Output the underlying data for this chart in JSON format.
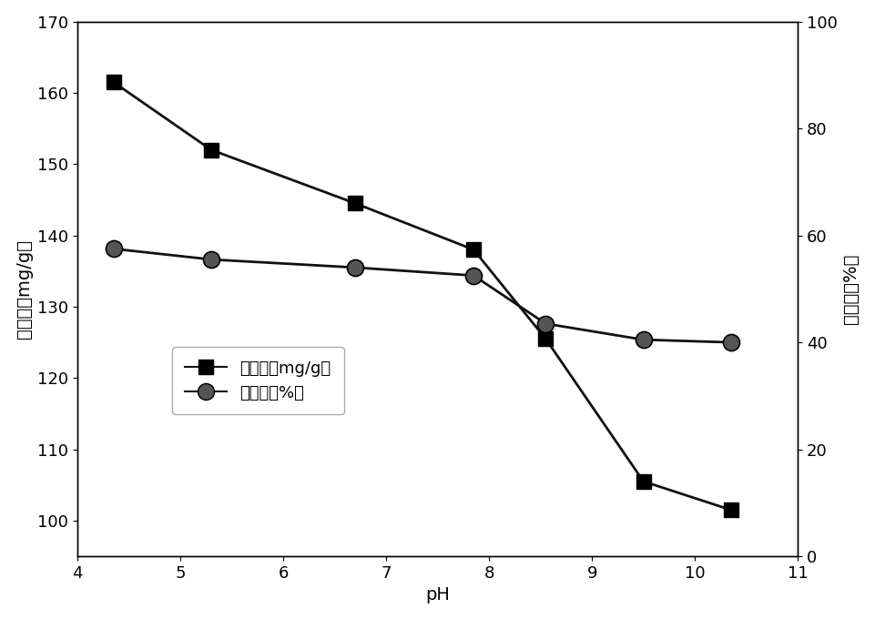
{
  "ph_values": [
    4.35,
    5.3,
    6.7,
    7.85,
    8.55,
    9.5,
    10.35
  ],
  "adsorption": [
    161.5,
    152.0,
    144.5,
    138.0,
    125.5,
    105.5,
    101.5
  ],
  "removal_rate": [
    57.5,
    55.5,
    54.0,
    52.5,
    43.5,
    40.5,
    40.0
  ],
  "xlabel": "pH",
  "ylabel_left": "吸附量（mg/g）",
  "ylabel_right": "去除率（%）",
  "legend_adsorption": "吸附量（mg/g）",
  "legend_removal": "去除率（%）",
  "xlim": [
    4,
    11
  ],
  "ylim_left": [
    95,
    170
  ],
  "ylim_right": [
    0,
    100
  ],
  "yticks_left": [
    100,
    110,
    120,
    130,
    140,
    150,
    160,
    170
  ],
  "yticks_right": [
    0,
    20,
    40,
    60,
    80,
    100
  ],
  "xticks": [
    4,
    5,
    6,
    7,
    8,
    9,
    10,
    11
  ],
  "line_color": "#111111",
  "marker_size_square": 11,
  "marker_size_circle": 13,
  "linewidth": 2.0,
  "background_color": "#ffffff",
  "legend_fontsize": 13,
  "axis_label_fontsize": 14,
  "tick_fontsize": 13
}
